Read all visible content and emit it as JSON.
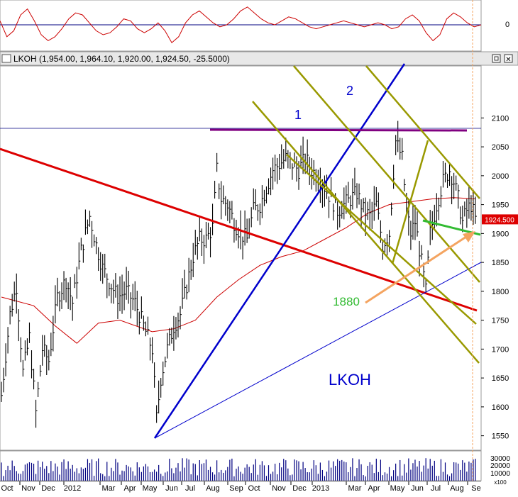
{
  "window": {
    "title_bar": "LKOH (1,954.00, 1,964.10, 1,920.00, 1,924.50, -25.5000)",
    "close_label": "✕"
  },
  "colors": {
    "bar": "#000000",
    "price_ma": "#cc0000",
    "oscillator": "#cc0000",
    "zero_line": "#000080",
    "blue_line": "#0000cc",
    "red_trend": "#dd0000",
    "channel": "#999900",
    "resistance": "#800080",
    "green": "#33bb33",
    "arrow": "#f4a460",
    "price_tag_bg": "#dd0000"
  },
  "chart_data": [
    {
      "type": "line",
      "panel": "oscillator",
      "axis_tick_labels": [
        "0"
      ],
      "series": [
        {
          "values": [
            0.2,
            -0.6,
            -0.3,
            0.5,
            0.8,
            0.2,
            -0.5,
            -0.8,
            -0.6,
            -0.2,
            0.3,
            0.6,
            0.5,
            0.1,
            -0.3,
            -0.5,
            -0.4,
            -0.1,
            0.3,
            0.2,
            -0.2,
            -0.4,
            -0.2,
            0.1,
            -0.3,
            -0.9,
            -0.6,
            0.1,
            0.5,
            0.7,
            0.4,
            0.1,
            -0.1,
            0.0,
            0.3,
            0.7,
            0.9,
            0.6,
            0.3,
            0.1,
            0.0,
            0.2,
            0.4,
            0.3,
            0.1,
            -0.1,
            -0.2,
            -0.1,
            0.0,
            0.1,
            0.2,
            0.1,
            0.0,
            -0.1,
            0.0,
            0.1,
            0.0,
            -0.2,
            -0.1,
            0.3,
            0.5,
            0.2,
            -0.4,
            -0.8,
            -0.5,
            0.3,
            0.6,
            0.4,
            0.1,
            -0.1,
            0.0
          ]
        }
      ]
    },
    {
      "type": "bar",
      "panel": "price",
      "title": "LKOH (1,954.00, 1,964.10, 1,920.00, 1,924.50, -25.5000)",
      "ylim": [
        1525,
        2190
      ],
      "y_ticks": [
        1550,
        1600,
        1650,
        1700,
        1750,
        1800,
        1850,
        1900,
        1950,
        2000,
        2050,
        2100
      ],
      "x_tick_labels": [
        "Oct",
        "Nov",
        "Dec",
        "2012",
        "Mar",
        "Apr",
        "May",
        "Jun",
        "Jul",
        "Aug",
        "Sep",
        "Oct",
        "Nov",
        "Dec",
        "2013",
        "Mar",
        "Apr",
        "May",
        "Jun",
        "Jul",
        "Aug",
        "Se"
      ],
      "last_price_label": "1924.500",
      "annotations": [
        "1",
        "2",
        "1880",
        "LKOH"
      ],
      "close_anchors": [
        [
          0,
          1620
        ],
        [
          4,
          1760
        ],
        [
          7,
          1810
        ],
        [
          10,
          1660
        ],
        [
          13,
          1720
        ],
        [
          16,
          1590
        ],
        [
          19,
          1700
        ],
        [
          22,
          1680
        ],
        [
          26,
          1790
        ],
        [
          30,
          1820
        ],
        [
          33,
          1780
        ],
        [
          37,
          1870
        ],
        [
          41,
          1930
        ],
        [
          44,
          1880
        ],
        [
          47,
          1840
        ],
        [
          51,
          1810
        ],
        [
          54,
          1790
        ],
        [
          58,
          1800
        ],
        [
          62,
          1780
        ],
        [
          66,
          1740
        ],
        [
          70,
          1700
        ],
        [
          72,
          1580
        ],
        [
          74,
          1650
        ],
        [
          77,
          1700
        ],
        [
          80,
          1740
        ],
        [
          83,
          1760
        ],
        [
          86,
          1810
        ],
        [
          89,
          1860
        ],
        [
          92,
          1890
        ],
        [
          95,
          1890
        ],
        [
          98,
          1910
        ],
        [
          100,
          2010
        ],
        [
          102,
          1960
        ],
        [
          105,
          1950
        ],
        [
          108,
          1920
        ],
        [
          111,
          1900
        ],
        [
          114,
          1890
        ],
        [
          117,
          1940
        ],
        [
          120,
          1950
        ],
        [
          123,
          1980
        ],
        [
          126,
          2010
        ],
        [
          129,
          2020
        ],
        [
          132,
          2030
        ],
        [
          135,
          2020
        ],
        [
          138,
          2010
        ],
        [
          141,
          2030
        ],
        [
          144,
          2010
        ],
        [
          147,
          2000
        ],
        [
          150,
          1980
        ],
        [
          153,
          1960
        ],
        [
          156,
          1940
        ],
        [
          159,
          1950
        ],
        [
          162,
          1960
        ],
        [
          165,
          1970
        ],
        [
          168,
          1940
        ],
        [
          171,
          1930
        ],
        [
          174,
          1950
        ],
        [
          177,
          1880
        ],
        [
          180,
          1900
        ],
        [
          183,
          2060
        ],
        [
          186,
          2030
        ],
        [
          188,
          1940
        ],
        [
          190,
          1900
        ],
        [
          192,
          1920
        ],
        [
          195,
          1850
        ],
        [
          197,
          1800
        ],
        [
          199,
          1900
        ],
        [
          202,
          1950
        ],
        [
          205,
          1990
        ],
        [
          208,
          2010
        ],
        [
          210,
          1990
        ],
        [
          212,
          1960
        ],
        [
          214,
          1920
        ],
        [
          216,
          1940
        ],
        [
          218,
          1950
        ],
        [
          220,
          1924.5
        ]
      ],
      "moving_average": [
        [
          0,
          1790
        ],
        [
          15,
          1775
        ],
        [
          25,
          1740
        ],
        [
          35,
          1710
        ],
        [
          45,
          1745
        ],
        [
          55,
          1750
        ],
        [
          70,
          1730
        ],
        [
          80,
          1735
        ],
        [
          90,
          1750
        ],
        [
          100,
          1790
        ],
        [
          110,
          1820
        ],
        [
          120,
          1845
        ],
        [
          130,
          1860
        ],
        [
          140,
          1870
        ],
        [
          150,
          1890
        ],
        [
          160,
          1910
        ],
        [
          170,
          1935
        ],
        [
          180,
          1950
        ],
        [
          190,
          1955
        ],
        [
          200,
          1960
        ],
        [
          210,
          1962
        ],
        [
          220,
          1960
        ]
      ],
      "volume_tick_labels": [
        "30000",
        "20000",
        "10000",
        "x100"
      ]
    }
  ]
}
